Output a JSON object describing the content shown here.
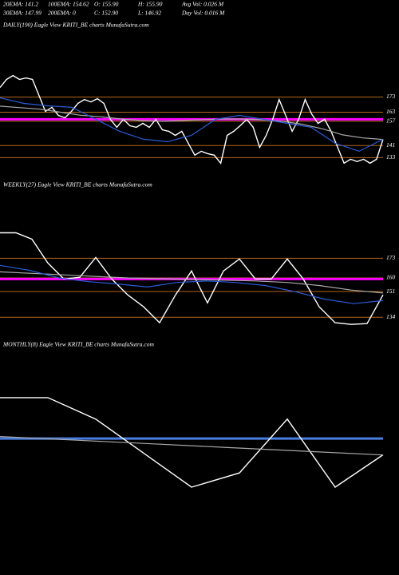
{
  "header": {
    "items": [
      "20EMA: 141.2",
      "100EMA: 154.62",
      "O: 155.90",
      "H: 155.90",
      "Avg Vol: 0.026  M",
      "30EMA: 147.99",
      "200EMA: 0",
      "C: 152.90",
      "L: 146.92",
      "Day Vol: 0.016  M"
    ]
  },
  "chart_data": [
    {
      "type": "line",
      "title": "DAILY(190) Eagle  View  KRITI_BE charts MunafaSutra.com",
      "ylim": [
        120,
        216
      ],
      "yticks": [
        173,
        163,
        157,
        141,
        133
      ],
      "grid": true,
      "grid_color": "#b5651d",
      "hlines": [
        {
          "value": 158.3,
          "color": "#ff00ff"
        }
      ],
      "series": [
        {
          "color": "#ffffff",
          "values": [
            179.3,
            184.6,
            187.2,
            184.6,
            185.6,
            184.6,
            174.1,
            163.5,
            166.2,
            160.9,
            159.3,
            163.5,
            168.8,
            171.4,
            169.8,
            171.9,
            168.8,
            158.3,
            153,
            158.3,
            154.1,
            153,
            155.6,
            153,
            158.3,
            151.4,
            150.4,
            147.7,
            150.4,
            142.5,
            134.6,
            137.2,
            135.6,
            134.6,
            129.3,
            147.7,
            150.4,
            154.1,
            158.3,
            153,
            139.8,
            147.7,
            158.3,
            171.4,
            160.9,
            150.4,
            158.3,
            171.4,
            161.9,
            155.6,
            158.3,
            150.4,
            139.8,
            129.3,
            131.9,
            130.4,
            131.9,
            129.3,
            131.9,
            145.1
          ]
        },
        {
          "color": "#aaaaaa",
          "values": [
            167,
            166,
            165,
            163,
            161,
            160,
            158.5,
            157.5,
            157,
            157.5,
            158,
            158.5,
            158.5,
            158,
            157,
            155,
            152,
            148,
            146,
            145
          ]
        },
        {
          "color": "#2a5bd7",
          "values": [
            172.5,
            168.8,
            167.2,
            166.2,
            158.3,
            150.4,
            145.1,
            143.5,
            147.7,
            158.3,
            160.9,
            158.3,
            155.6,
            153,
            142.5,
            137.2,
            145.1
          ]
        }
      ]
    },
    {
      "type": "line",
      "title": "WEEKLY(27) Eagle  View  KRITI_BE charts MunafaSutra.com",
      "ylim": [
        122,
        217
      ],
      "yticks": [
        173,
        160,
        151,
        134
      ],
      "grid": true,
      "grid_color": "#b5651d",
      "hlines": [
        {
          "value": 159.3,
          "color": "#ff00ff"
        }
      ],
      "series": [
        {
          "color": "#ffffff",
          "values": [
            189.8,
            189.8,
            185.6,
            169.8,
            159.3,
            160.4,
            173.5,
            159.3,
            148.8,
            140.9,
            130.4,
            148.8,
            164.6,
            143.5,
            164.6,
            172.5,
            159.3,
            159.3,
            172.5,
            159.3,
            140.9,
            130.4,
            129.3,
            129.8,
            148.8
          ]
        },
        {
          "color": "#aaaaaa",
          "values": [
            164,
            163,
            162,
            161,
            160,
            159.5,
            159,
            158.5,
            158,
            157,
            155,
            152,
            150
          ]
        },
        {
          "color": "#2a5bd7",
          "values": [
            168.3,
            165,
            160,
            157.5,
            156,
            154,
            157,
            158,
            157,
            155,
            151,
            146,
            143,
            145
          ]
        }
      ]
    },
    {
      "type": "line",
      "title": "MONTHLY(8) Eagle  View  KRITI_BE charts MunafaSutra.com",
      "ylim": [
        100,
        220
      ],
      "grid": false,
      "hlines": [
        {
          "value": 172.9,
          "color": "#4a7de0"
        }
      ],
      "series": [
        {
          "color": "#ffffff",
          "values": [
            195,
            195,
            183.4,
            165,
            146.6,
            154.3,
            183.4,
            146.6,
            164.1
          ]
        },
        {
          "color": "#aaaaaa",
          "values": [
            174,
            172,
            170,
            168,
            166,
            164
          ]
        }
      ]
    }
  ]
}
